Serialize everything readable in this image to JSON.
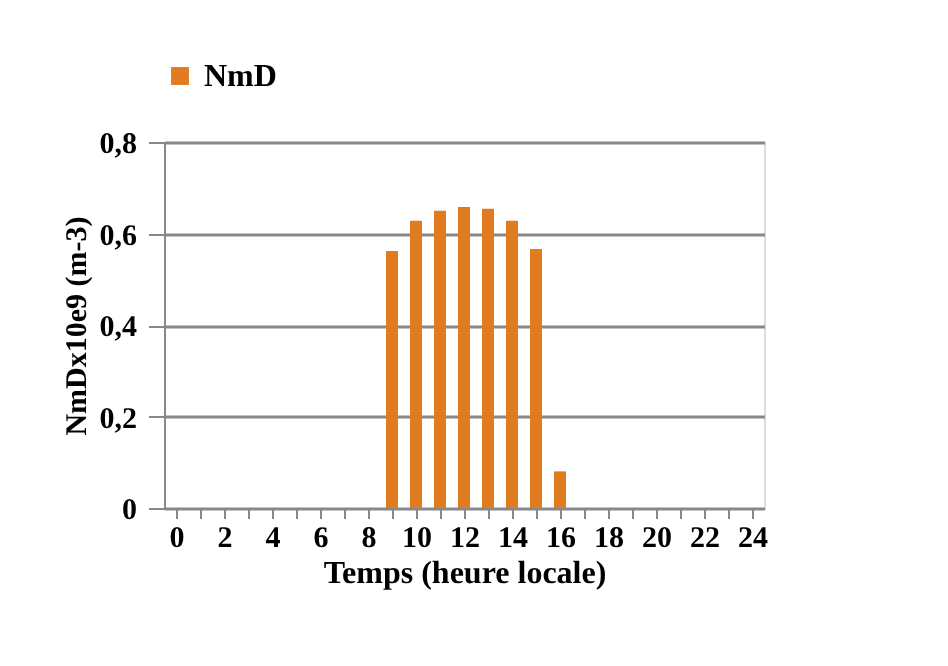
{
  "chart_data": {
    "type": "bar",
    "xlabel": "Temps (heure locale)",
    "ylabel": "NmDx10e9 (m-3)",
    "x": [
      9,
      10,
      11,
      12,
      13,
      14,
      15,
      16
    ],
    "series": [
      {
        "name": "NmD",
        "color": "#e07b20",
        "values": [
          0.562,
          0.628,
          0.65,
          0.658,
          0.654,
          0.628,
          0.566,
          0.08
        ]
      }
    ],
    "xlim": [
      -0.5,
      24.5
    ],
    "xticks": [
      0,
      {
        "value": 1,
        "label": null
      },
      2,
      {
        "value": 3,
        "label": null
      },
      4,
      {
        "value": 5,
        "label": null
      },
      6,
      {
        "value": 7,
        "label": null
      },
      8,
      {
        "value": 9,
        "label": null
      },
      10,
      {
        "value": 11,
        "label": null
      },
      12,
      {
        "value": 13,
        "label": null
      },
      14,
      {
        "value": 15,
        "label": null
      },
      16,
      {
        "value": 17,
        "label": null
      },
      18,
      {
        "value": 19,
        "label": null
      },
      20,
      {
        "value": 21,
        "label": null
      },
      22,
      {
        "value": 23,
        "label": null
      },
      24
    ],
    "ylim": [
      0,
      0.8
    ],
    "yticks": [
      0,
      {
        "value": 0.2,
        "label": "0,2"
      },
      {
        "value": 0.4,
        "label": "0,4"
      },
      {
        "value": 0.6,
        "label": "0,6"
      },
      {
        "value": 0.8,
        "label": "0,8"
      }
    ],
    "grid": "y",
    "legend": "top"
  }
}
